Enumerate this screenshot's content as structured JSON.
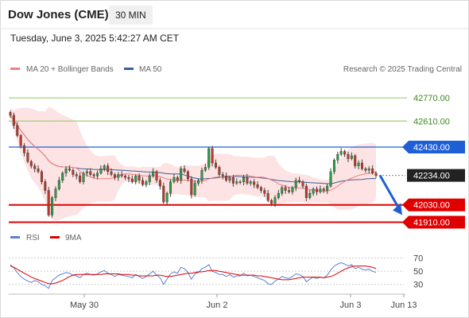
{
  "header": {
    "title": "Dow Jones (CME)",
    "timeframe": "30 MIN",
    "datetime": "Tuesday, June 3, 2025 5:42:27 AM CET"
  },
  "legend": {
    "ma20": "MA 20 + Bollinger Bands",
    "ma50": "MA 50",
    "copyright": "Research © 2025 Trading Central",
    "ma20_color": "#f08080",
    "ma50_color": "#3a5f9a"
  },
  "rsi_legend": {
    "rsi": "RSI",
    "ma9": "9MA",
    "rsi_color": "#5b7fd6",
    "ma9_color": "#e00000"
  },
  "chart_data": [
    {
      "type": "candlestick",
      "ylim": [
        41880,
        42870
      ],
      "x_ticks": [
        "May 30",
        "Jun 2",
        "Jun 3",
        "Jun 13"
      ],
      "levels": [
        {
          "value": 42770.0,
          "label": "42770.00",
          "kind": "resistance",
          "color": "#9bcf7a"
        },
        {
          "value": 42610.0,
          "label": "42610.00",
          "kind": "resistance",
          "color": "#9bcf7a"
        },
        {
          "value": 42430.0,
          "label": "42430.00",
          "kind": "pivot",
          "color": "#1f5fd6"
        },
        {
          "value": 42234.0,
          "label": "42234.00",
          "kind": "last",
          "color": "#222222"
        },
        {
          "value": 42030.0,
          "label": "42030.00",
          "kind": "support",
          "color": "#e00000"
        },
        {
          "value": 41910.0,
          "label": "41910.00",
          "kind": "support",
          "color": "#e00000"
        }
      ],
      "forecast_arrow": {
        "from": 42234,
        "to": 41960,
        "color": "#1f5fd6"
      },
      "close_series": [
        42650,
        42580,
        42510,
        42440,
        42390,
        42330,
        42300,
        42280,
        42260,
        42190,
        42130,
        41960,
        42080,
        42140,
        42200,
        42250,
        42280,
        42270,
        42240,
        42230,
        42190,
        42250,
        42260,
        42240,
        42230,
        42250,
        42280,
        42300,
        42260,
        42240,
        42220,
        42240,
        42230,
        42220,
        42210,
        42190,
        42230,
        42200,
        42170,
        42190,
        42230,
        42260,
        42200,
        42160,
        42050,
        42110,
        42190,
        42220,
        42200,
        42280,
        42260,
        42210,
        42100,
        42180,
        42200,
        42270,
        42290,
        42420,
        42320,
        42290,
        42240,
        42230,
        42200,
        42220,
        42180,
        42190,
        42190,
        42220,
        42180,
        42190,
        42170,
        42150,
        42130,
        42110,
        42060,
        42040,
        42080,
        42110,
        42150,
        42130,
        42120,
        42150,
        42200,
        42190,
        42160,
        42080,
        42110,
        42140,
        42120,
        42140,
        42130,
        42160,
        42260,
        42340,
        42380,
        42400,
        42380,
        42350,
        42370,
        42300,
        42320,
        42280,
        42270,
        42280,
        42250,
        42234
      ]
    },
    {
      "type": "line",
      "title": "RSI",
      "ylim": [
        20,
        78
      ],
      "y_ticks": [
        70,
        50,
        30
      ],
      "series": [
        {
          "name": "RSI",
          "values": [
            60,
            55,
            48,
            42,
            38,
            35,
            33,
            36,
            34,
            30,
            28,
            24,
            36,
            40,
            44,
            46,
            48,
            47,
            44,
            43,
            40,
            45,
            47,
            45,
            44,
            46,
            49,
            51,
            47,
            45,
            42,
            45,
            44,
            43,
            42,
            40,
            45,
            42,
            39,
            42,
            46,
            50,
            44,
            40,
            30,
            38,
            46,
            49,
            47,
            56,
            54,
            48,
            38,
            46,
            48,
            54,
            56,
            60,
            50,
            48,
            45,
            45,
            42,
            45,
            41,
            43,
            43,
            47,
            43,
            44,
            42,
            40,
            38,
            36,
            31,
            30,
            35,
            38,
            42,
            40,
            39,
            42,
            46,
            45,
            42,
            34,
            38,
            41,
            39,
            41,
            40,
            44,
            52,
            58,
            61,
            63,
            61,
            58,
            60,
            54,
            56,
            53,
            52,
            53,
            50,
            48
          ]
        },
        {
          "name": "9MA",
          "values": [
            58,
            56,
            53,
            50,
            47,
            44,
            41,
            39,
            37,
            35,
            33,
            31,
            31,
            32,
            34,
            36,
            39,
            42,
            44,
            45,
            45,
            45,
            45,
            45,
            45,
            45,
            45,
            46,
            46,
            46,
            46,
            46,
            45,
            45,
            45,
            44,
            44,
            43,
            43,
            43,
            43,
            43,
            44,
            44,
            43,
            42,
            42,
            43,
            44,
            45,
            46,
            47,
            47,
            48,
            49,
            49,
            50,
            51,
            51,
            51,
            50,
            49,
            48,
            47,
            46,
            45,
            44,
            44,
            44,
            44,
            44,
            43,
            43,
            42,
            41,
            40,
            39,
            38,
            37,
            37,
            37,
            38,
            39,
            40,
            41,
            41,
            41,
            41,
            41,
            41,
            40,
            41,
            42,
            44,
            47,
            50,
            53,
            55,
            57,
            58,
            58,
            58,
            58,
            57,
            56,
            54
          ]
        }
      ]
    }
  ]
}
